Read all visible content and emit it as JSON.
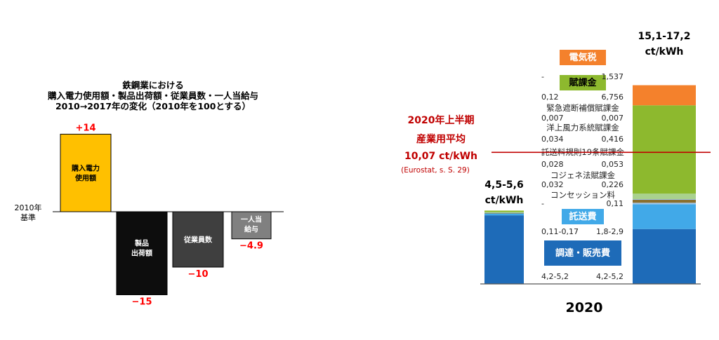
{
  "chart_data": [
    {
      "type": "bar",
      "title_lines": [
        "鉄鋼業における",
        "購入電力使用額・製品出荷額・従業員数・一人当給与",
        "2010→2017年の変化（2010年を100とする）"
      ],
      "baseline_label_lines": [
        "2010年",
        "基準"
      ],
      "categories": [
        {
          "label_lines": [
            "購入電力",
            "使用額"
          ]
        },
        {
          "label_lines": [
            "製品",
            "出荷額"
          ]
        },
        {
          "label_lines": [
            "従業員数"
          ]
        },
        {
          "label_lines": [
            "一人当",
            "給与"
          ]
        }
      ],
      "values": [
        14,
        -15,
        -10,
        -4.9
      ],
      "value_labels": [
        "+14",
        "−15",
        "−10",
        "−4.9"
      ],
      "colors": [
        "#FFC000",
        "#0D0D0D",
        "#3F3F3F",
        "#808080"
      ],
      "value_label_color": "#FF0000",
      "ylim": [
        -17,
        15.5
      ]
    },
    {
      "type": "stacked-bar",
      "year_label": "2020",
      "bars": [
        {
          "total_label_lines": [
            "4,5-5,6",
            "ct/kWh"
          ],
          "segments": [
            {
              "name": "調達・販売費",
              "value": 5.25,
              "color": "#1E6BB8"
            },
            {
              "name": "託送費",
              "value": 0.14,
              "color": "#41A9E8"
            },
            {
              "name": "コンセッション料",
              "value": 0,
              "color": "#9DC3E6"
            },
            {
              "name": "コジェネ法賦課金",
              "value": 0.032,
              "color": "#8A6F2E"
            },
            {
              "name": "託送料規則19条賦課金",
              "value": 0.028,
              "color": "#9DC3E6"
            },
            {
              "name": "洋上風力系統賦課金",
              "value": 0.034,
              "color": "#A9D18E"
            },
            {
              "name": "緊急遮断補償賦課金",
              "value": 0.007,
              "color": "#A9D18E"
            },
            {
              "name": "賦課金",
              "value": 0.12,
              "color": "#8DB92E"
            },
            {
              "name": "電気税",
              "value": 0,
              "color": "#F4812C"
            }
          ]
        },
        {
          "total_label_lines": [
            "15,1-17,2",
            "ct/kWh"
          ],
          "segments": [
            {
              "name": "調達・販売費",
              "value": 4.2,
              "color": "#1E6BB8"
            },
            {
              "name": "託送費",
              "value": 1.9,
              "color": "#41A9E8"
            },
            {
              "name": "コンセッション料",
              "value": 0.11,
              "color": "#9DC3E6"
            },
            {
              "name": "コジェネ法賦課金",
              "value": 0.226,
              "color": "#8A6F2E"
            },
            {
              "name": "託送料規則19条賦課金",
              "value": 0.053,
              "color": "#9DC3E6"
            },
            {
              "name": "洋上風力系統賦課金",
              "value": 0.416,
              "color": "#A9D18E"
            },
            {
              "name": "緊急遮断補償賦課金",
              "value": 0.007,
              "color": "#A9D18E"
            },
            {
              "name": "賦課金",
              "value": 6.756,
              "color": "#8DB92E"
            },
            {
              "name": "電気税",
              "value": 1.537,
              "color": "#F4812C"
            }
          ]
        }
      ],
      "category_labels": [
        {
          "text": "電気税",
          "style": "box",
          "color": "#F4812C"
        },
        {
          "text": "賦課金",
          "style": "box",
          "color": "#8DB92E"
        },
        {
          "text": "緊急遮断補償賦課金",
          "style": "plain"
        },
        {
          "text": "洋上風力系統賦課金",
          "style": "plain"
        },
        {
          "text": "託送料規則19条賦課金",
          "style": "plain"
        },
        {
          "text": "コジェネ法賦課金",
          "style": "plain"
        },
        {
          "text": "コンセッション料",
          "style": "plain"
        },
        {
          "text": "託送費",
          "style": "box",
          "color": "#41A9E8"
        },
        {
          "text": "調達・販売費",
          "style": "box",
          "color": "#1E6BB8"
        }
      ],
      "value_rows": [
        {
          "left": "-",
          "right": "1,537"
        },
        {
          "left": "0,12",
          "right": "6,756"
        },
        {
          "left": "0,007",
          "right": "0,007"
        },
        {
          "left": "0,034",
          "right": "0,416"
        },
        {
          "left": "0,028",
          "right": "0,053"
        },
        {
          "left": "0,032",
          "right": "0,226"
        },
        {
          "left": "-",
          "right": "0,11"
        },
        {
          "left": "0,11-0,17",
          "right": "1,8-2,9"
        },
        {
          "left": "4,2-5,2",
          "right": "4,2-5,2"
        }
      ],
      "reference_line": {
        "value": 10.07,
        "label_lines": [
          "2020年上半期",
          "産業用平均",
          "10,07 ct/kWh"
        ],
        "source": "(Eurostat, s. S. 29)",
        "color": "#C00000"
      },
      "ylim": [
        0,
        16.2
      ]
    }
  ]
}
